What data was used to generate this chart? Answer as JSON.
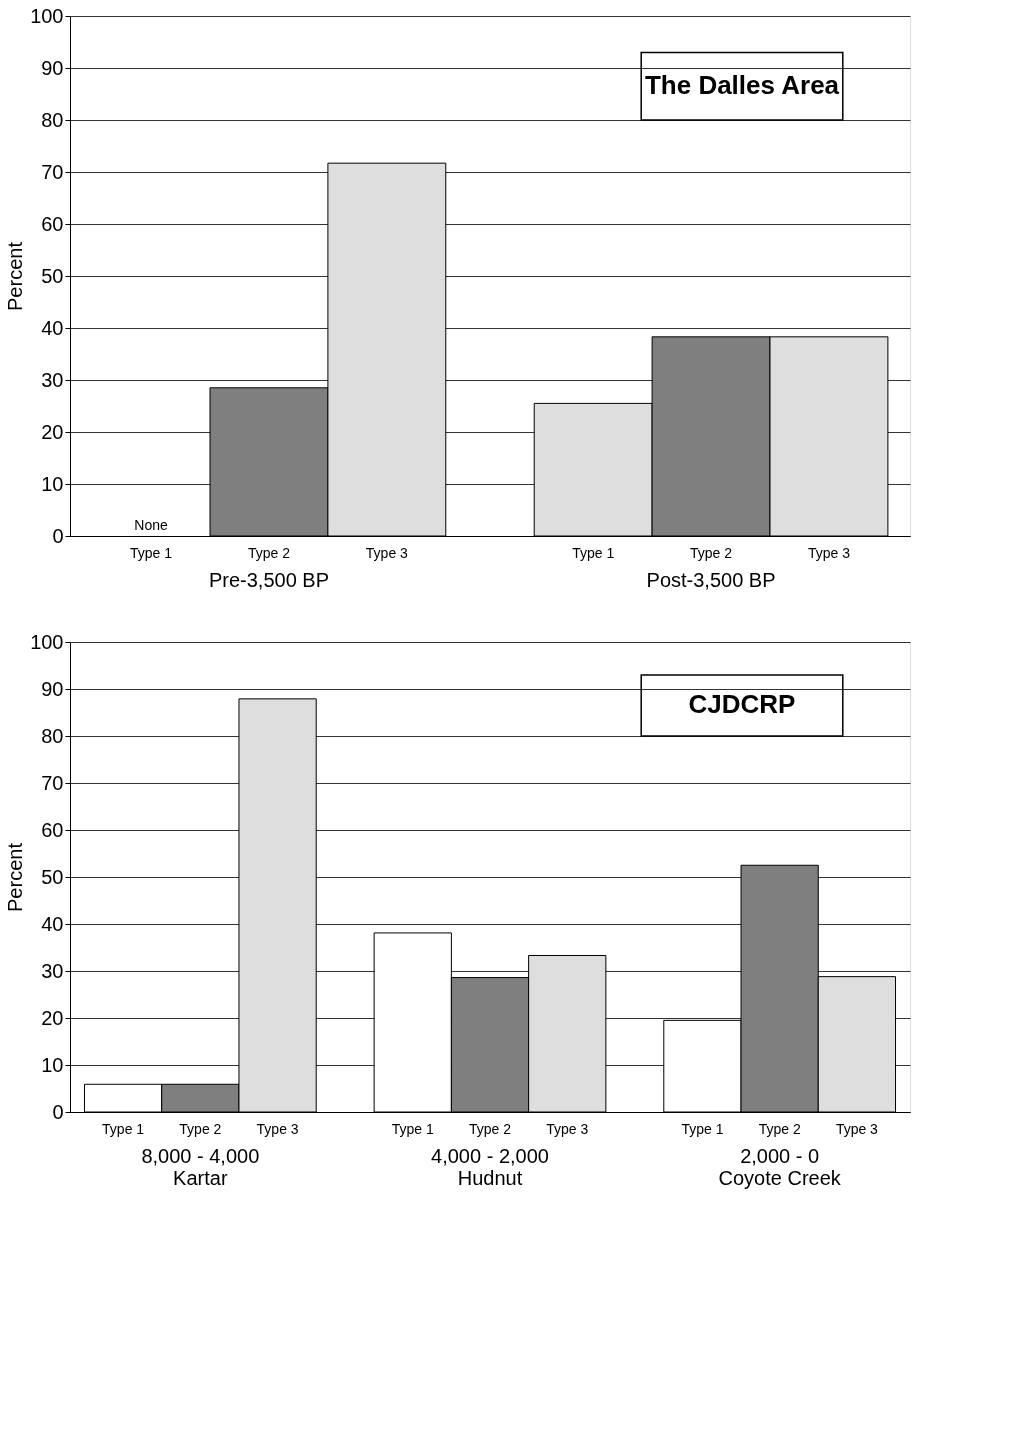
{
  "chart_data": [
    {
      "type": "bar",
      "title": "The Dalles Area",
      "ylabel": "Percent",
      "categories": [
        "Pre-3,500 BP",
        "Post-3,500 BP"
      ],
      "series": [
        {
          "name": "Type 1",
          "color": "#dedede",
          "values": [
            null,
            25.5
          ]
        },
        {
          "name": "Type 2",
          "color": "#7f7f7f",
          "values": [
            28.5,
            38.3
          ]
        },
        {
          "name": "Type 3",
          "color": "#dedede",
          "values": [
            71.7,
            38.3
          ]
        }
      ],
      "ylim": [
        0,
        100
      ],
      "yticks": [
        0,
        10,
        20,
        30,
        40,
        50,
        60,
        70,
        80,
        90,
        100
      ],
      "grid": "y",
      "legend": false,
      "annotations": [
        "None"
      ]
    },
    {
      "type": "bar",
      "title": "CJDCRP",
      "ylabel": "Percent",
      "categories": [
        "8,000 - 4,000\nKartar",
        "4,000 - 2,000\nHudnut",
        "2,000 - 0\nCoyote Creek"
      ],
      "series": [
        {
          "name": "Type 1",
          "color": "#ffffff",
          "values": [
            5.9,
            38.1,
            19.5
          ]
        },
        {
          "name": "Type 2",
          "color": "#7f7f7f",
          "values": [
            5.9,
            28.6,
            52.5
          ]
        },
        {
          "name": "Type 3",
          "color": "#dedede",
          "values": [
            87.9,
            33.3,
            28.8
          ]
        }
      ],
      "ylim": [
        0,
        100
      ],
      "yticks": [
        0,
        10,
        20,
        30,
        40,
        50,
        60,
        70,
        80,
        90,
        100
      ],
      "grid": "y",
      "legend": false
    }
  ]
}
